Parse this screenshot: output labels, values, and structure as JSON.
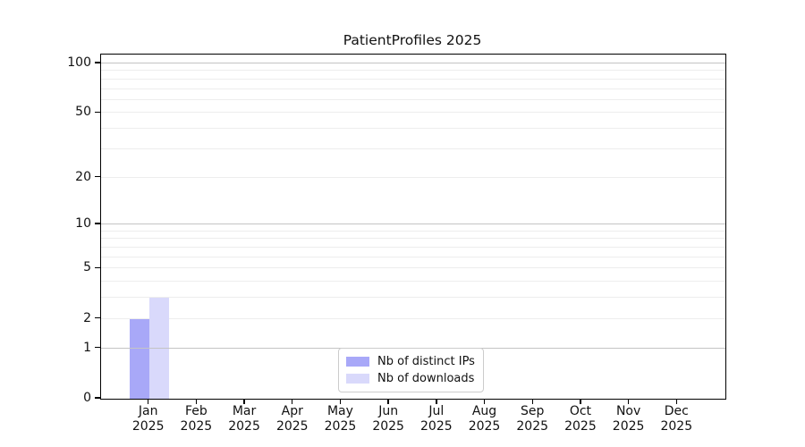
{
  "chart_data": {
    "type": "bar",
    "title": "PatientProfiles 2025",
    "categories": [
      [
        "Jan",
        "2025"
      ],
      [
        "Feb",
        "2025"
      ],
      [
        "Mar",
        "2025"
      ],
      [
        "Apr",
        "2025"
      ],
      [
        "May",
        "2025"
      ],
      [
        "Jun",
        "2025"
      ],
      [
        "Jul",
        "2025"
      ],
      [
        "Aug",
        "2025"
      ],
      [
        "Sep",
        "2025"
      ],
      [
        "Oct",
        "2025"
      ],
      [
        "Nov",
        "2025"
      ],
      [
        "Dec",
        "2025"
      ]
    ],
    "series": [
      {
        "name": "Nb of distinct IPs",
        "color": "#a8a8f8",
        "values": [
          2,
          0,
          0,
          0,
          0,
          0,
          0,
          0,
          0,
          0,
          0,
          0
        ]
      },
      {
        "name": "Nb of downloads",
        "color": "#d9d9fb",
        "values": [
          3,
          0,
          0,
          0,
          0,
          0,
          0,
          0,
          0,
          0,
          0,
          0
        ]
      }
    ],
    "yscale": "log1p",
    "ylim": [
      0,
      113
    ],
    "y_ticks": [
      0,
      1,
      2,
      5,
      10,
      20,
      50,
      100
    ],
    "grid": {
      "orientation": "horizontal",
      "major_values": [
        1,
        10,
        100
      ],
      "minor_values": [
        2,
        3,
        4,
        5,
        6,
        7,
        8,
        9,
        20,
        30,
        40,
        50,
        60,
        70,
        80,
        90
      ],
      "major_color": "#c4c4c4",
      "minor_color": "#ededed"
    },
    "legend": {
      "position": "lower center"
    },
    "axis_color": "#000000",
    "text_color": "#111111",
    "background_color": "#ffffff"
  }
}
